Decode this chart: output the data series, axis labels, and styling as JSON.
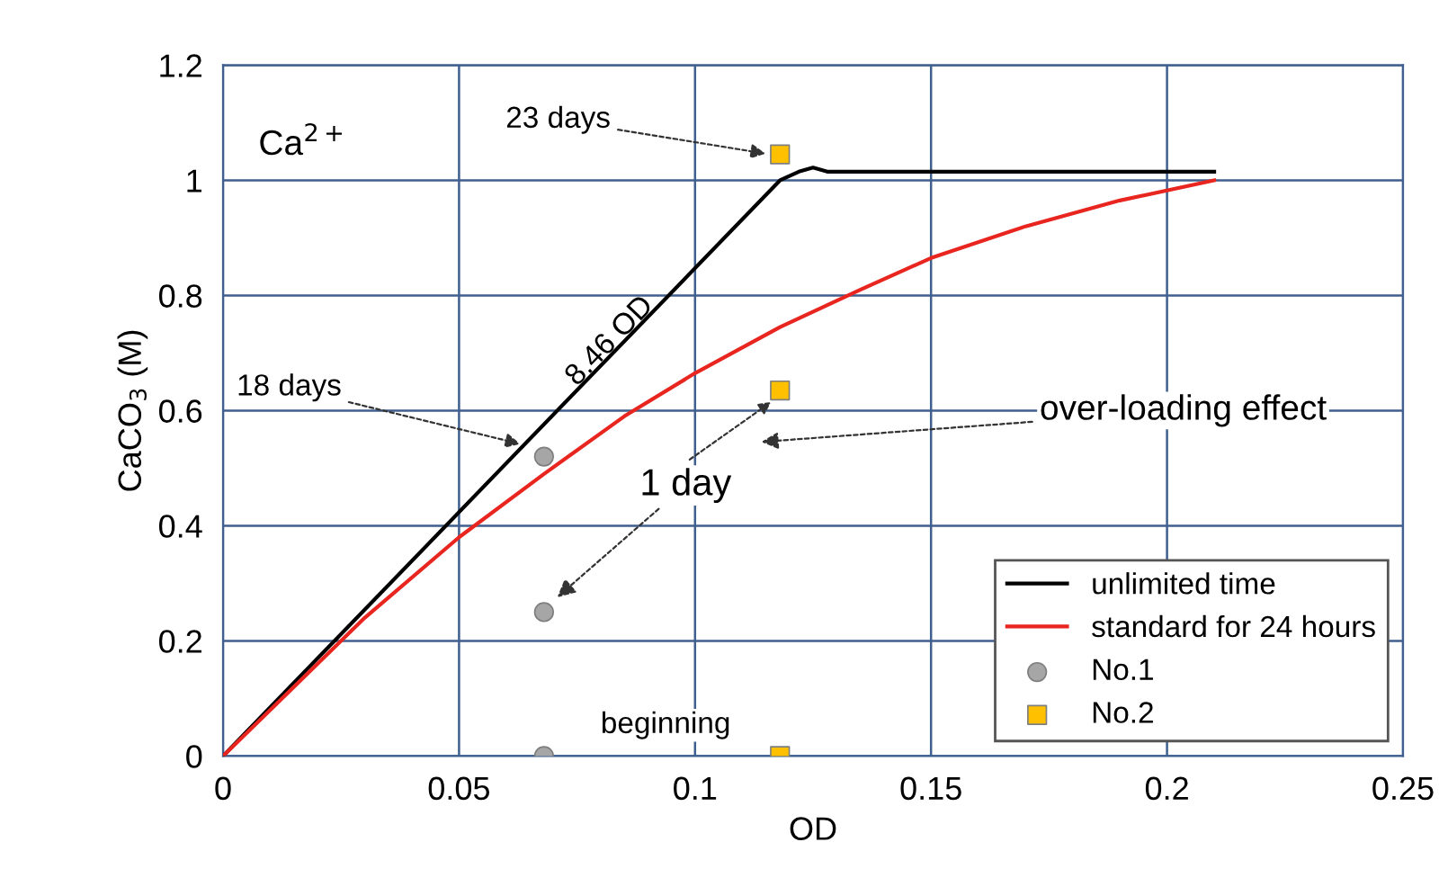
{
  "chart_data": {
    "type": "line",
    "xlabel": "OD",
    "ylabel": "CaCO$_{3}$ (M)",
    "xlim": [
      0,
      0.25
    ],
    "xticks": [
      0,
      0.05,
      0.1,
      0.15,
      0.2,
      0.25
    ],
    "ylim": [
      0,
      1.2
    ],
    "yticks": [
      0,
      0.2,
      0.4,
      0.6,
      0.8,
      1,
      1.2
    ],
    "grid": true,
    "legend": "bottom right",
    "series": [
      {
        "name": "unlimited time",
        "color": "#000000",
        "marker": "none",
        "x": [
          0,
          0.118,
          0.122,
          0.125,
          0.128,
          0.21
        ],
        "values": [
          0,
          1.0,
          1.015,
          1.022,
          1.015,
          1.015
        ]
      },
      {
        "name": "standard for 24 hours",
        "color": "#e8251f",
        "marker": "none",
        "x": [
          0,
          0.03,
          0.05,
          0.068,
          0.085,
          0.1,
          0.118,
          0.135,
          0.15,
          0.17,
          0.19,
          0.21
        ],
        "values": [
          0,
          0.24,
          0.38,
          0.49,
          0.59,
          0.665,
          0.745,
          0.81,
          0.865,
          0.92,
          0.965,
          1.0
        ]
      },
      {
        "name": "No.1",
        "type": "scatter",
        "color": "#a6a6a6",
        "marker": "circle",
        "x": [
          0.068,
          0.068,
          0.068
        ],
        "values": [
          0,
          0.25,
          0.52
        ]
      },
      {
        "name": "No.2",
        "type": "scatter",
        "color": "#ffc000",
        "marker": "square",
        "x": [
          0.118,
          0.118,
          0.118
        ],
        "values": [
          0,
          0.635,
          1.045
        ]
      }
    ],
    "annotations": [
      "Ca$^{2+}$",
      {
        "text": "23 days",
        "x": 0.116,
        "y": 1.045
      },
      {
        "text": "18 days",
        "x": 0.064,
        "y": 0.54
      },
      {
        "text": "8.46 OD",
        "x": 0.082,
        "y": 0.72
      },
      "over-loading effect",
      {
        "text": "1 day",
        "x": 0.07,
        "y": 0.27
      },
      "beginning"
    ]
  }
}
